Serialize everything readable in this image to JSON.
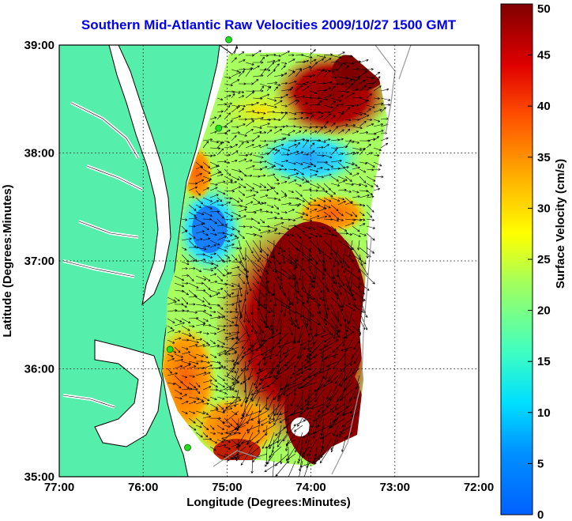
{
  "title": "Southern Mid-Atlantic Raw Velocities 2009/10/27 1500 GMT",
  "x_axis": {
    "label": "Longitude (Degrees:Minutes)",
    "ticks": [
      "77:00",
      "76:00",
      "75:00",
      "74:00",
      "73:00",
      "72:00"
    ]
  },
  "y_axis": {
    "label": "Latitude (Degrees:Minutes)",
    "ticks": [
      "39:00",
      "38:00",
      "37:00",
      "36:00",
      "35:00"
    ]
  },
  "colorbar": {
    "label": "Surface Velocity (cm/s)",
    "ticks": [
      "0",
      "5",
      "10",
      "15",
      "20",
      "25",
      "30",
      "35",
      "40",
      "45",
      "50"
    ],
    "min": 0,
    "max": 50,
    "colormap": "jet"
  },
  "colors": {
    "land": "#55eeaa",
    "coastline": "#000000",
    "title": "#0000ee",
    "vectors": "#000000",
    "stations": "#22dd22"
  },
  "map_extent": {
    "lon_min": -77,
    "lon_max": -72,
    "lat_min": 35,
    "lat_max": 39
  },
  "grid": true,
  "chart_data": {
    "type": "heatmap",
    "title": "Southern Mid-Atlantic Raw Velocities 2009/10/27 1500 GMT",
    "xlabel": "Longitude (Degrees:Minutes)",
    "ylabel": "Latitude (Degrees:Minutes)",
    "xlim": [
      -77,
      -72
    ],
    "ylim": [
      35,
      39
    ],
    "value_label": "Surface Velocity (cm/s)",
    "value_range": [
      0,
      50
    ],
    "overlay": "velocity vector arrows",
    "stations": [
      {
        "lon": -74.98,
        "lat": 39.05
      },
      {
        "lon": -75.1,
        "lat": 38.23
      },
      {
        "lon": -75.68,
        "lat": 36.18
      },
      {
        "lon": -75.47,
        "lat": 35.27
      }
    ]
  }
}
